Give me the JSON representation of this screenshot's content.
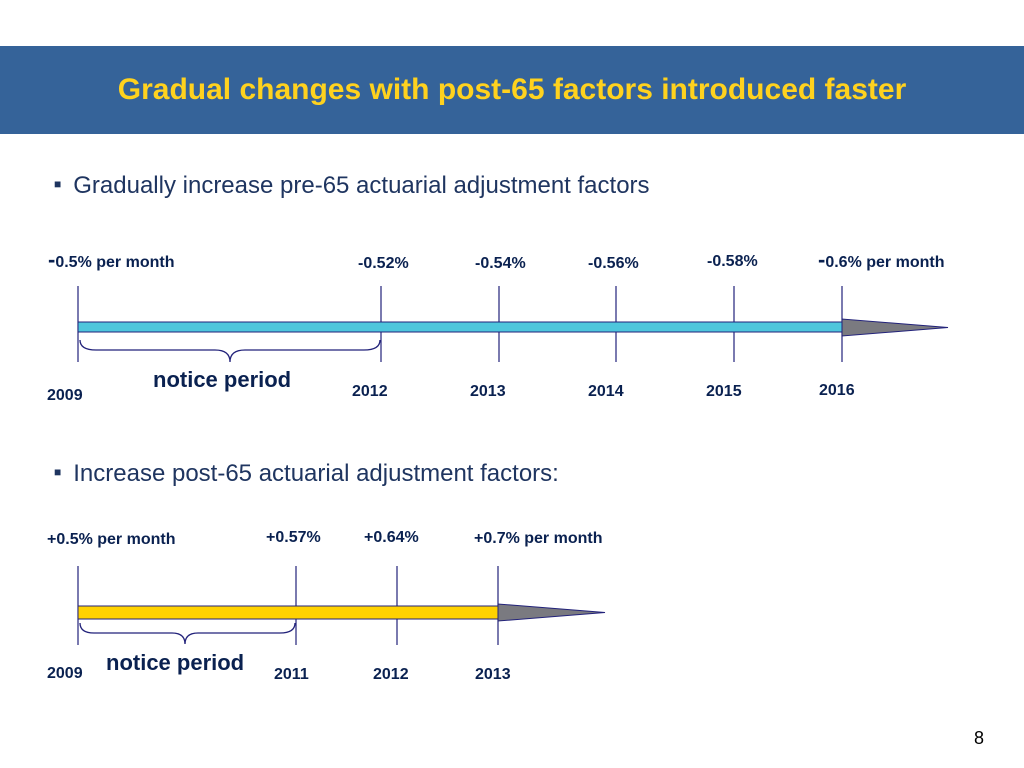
{
  "header": {
    "title": "Gradual changes with post-65 factors introduced faster"
  },
  "timeline_pre65": {
    "bullet": "Gradually increase pre-65 actuarial adjustment factors",
    "start_label_dash": "-",
    "start_label": "0.5% per month",
    "end_label_dash": "-",
    "end_label": "0.6% per month",
    "rate_labels": [
      "-0.52%",
      "-0.54%",
      "-0.56%",
      "-0.58%"
    ],
    "years": [
      "2009",
      "2012",
      "2013",
      "2014",
      "2015",
      "2016"
    ],
    "notice_label": "notice period",
    "bar_color": "#4ec6dc"
  },
  "timeline_post65": {
    "bullet": "Increase post-65 actuarial adjustment factors:",
    "start_label": "+0.5% per month",
    "end_label": "+0.7% per month",
    "rate_labels": [
      "+0.57%",
      "+0.64%"
    ],
    "years": [
      "2009",
      "2011",
      "2012",
      "2013"
    ],
    "notice_label": "notice period",
    "bar_color": "#ffd200"
  },
  "footer": {
    "page_number": "8"
  }
}
